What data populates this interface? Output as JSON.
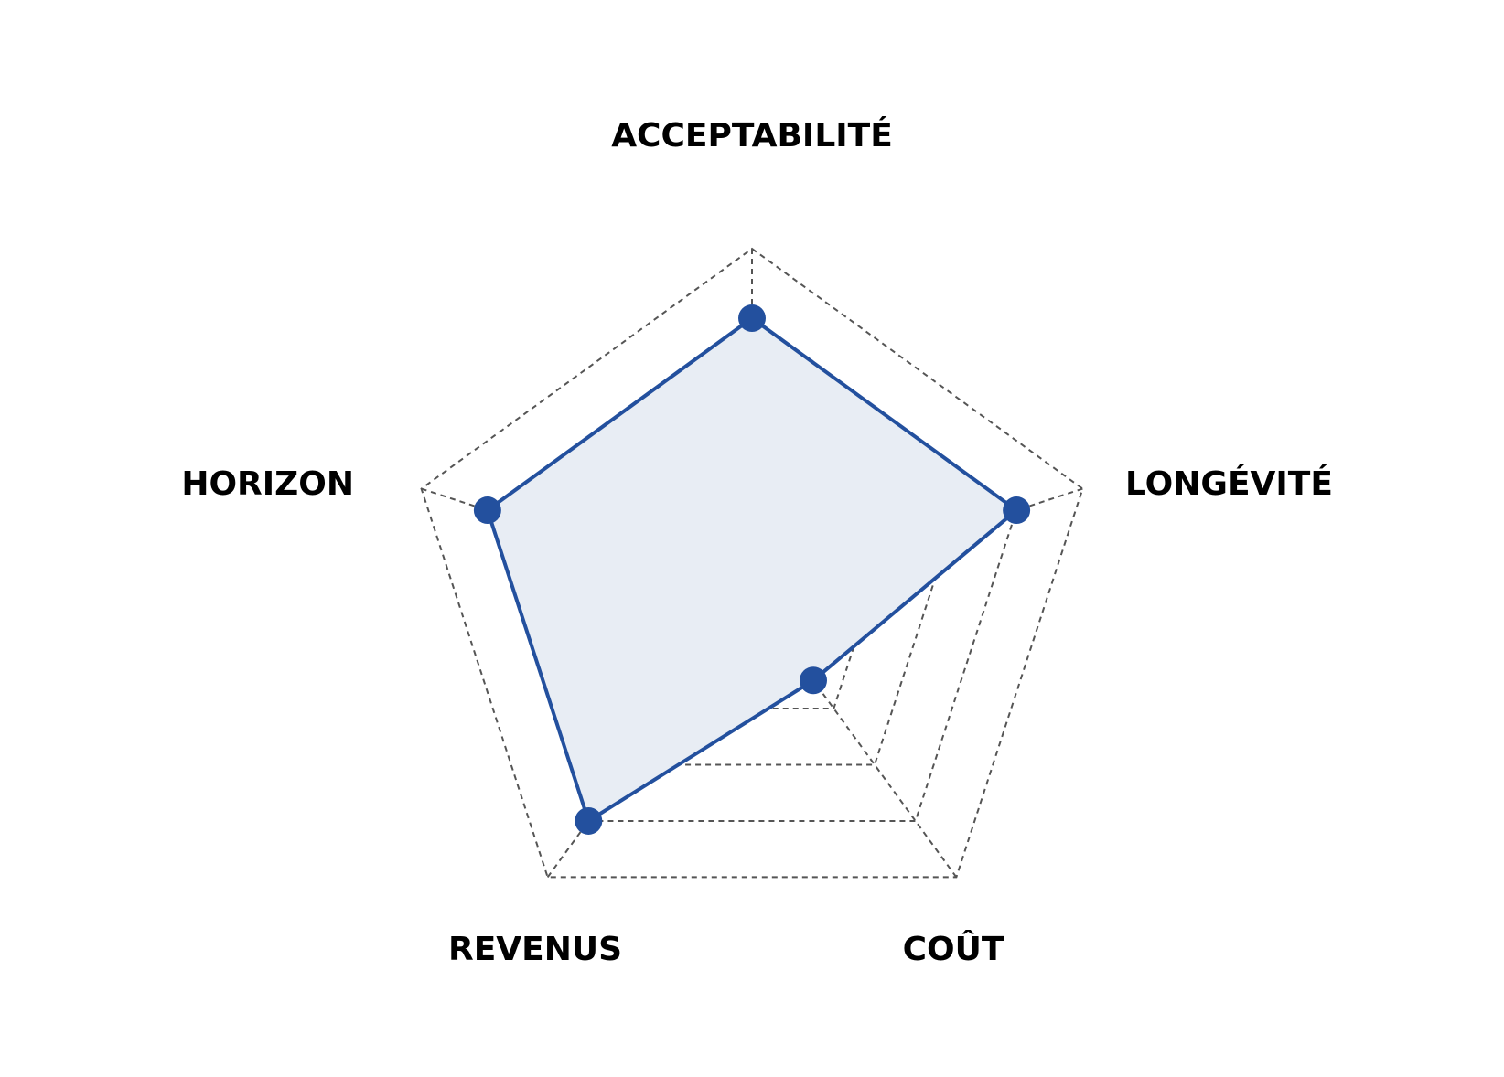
{
  "chart_data": {
    "type": "radar",
    "axes": [
      "ACCEPTABILITÉ",
      "LONGÉVITÉ",
      "COÛT",
      "REVENUS",
      "HORIZON"
    ],
    "series": [
      {
        "values": [
          4,
          4,
          1.5,
          4,
          4
        ]
      }
    ],
    "range": [
      0,
      5
    ],
    "rings": 5,
    "grid": true,
    "colors": {
      "line": "#23509e",
      "fill": "#e8edf4",
      "grid": "#555555"
    }
  }
}
